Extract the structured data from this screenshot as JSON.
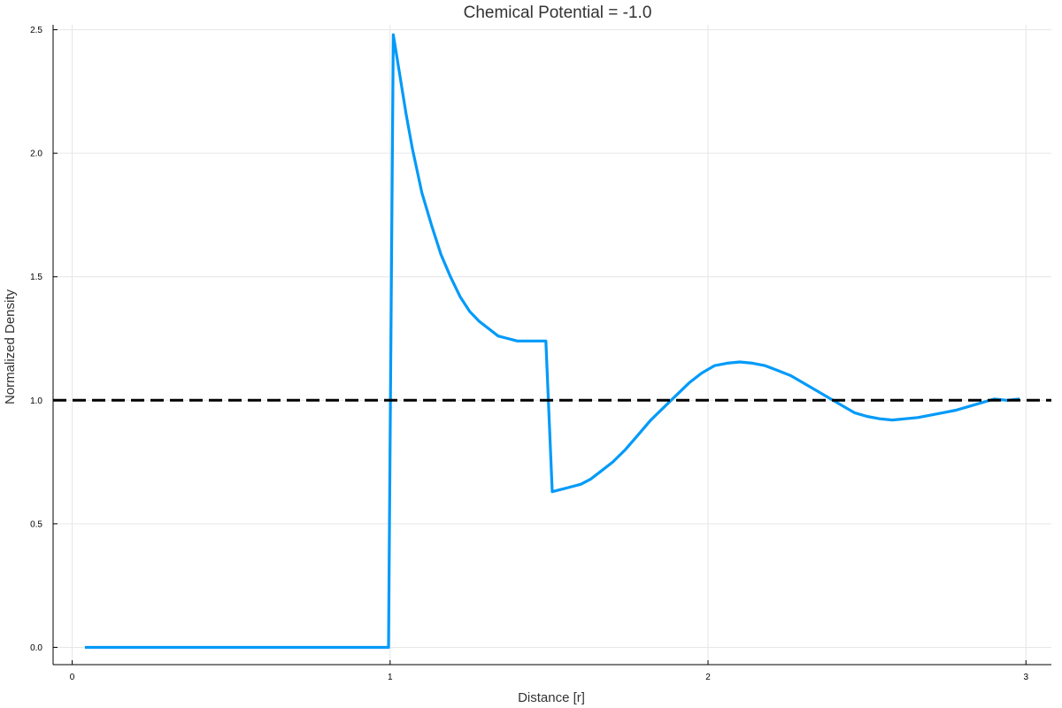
{
  "chart_data": {
    "type": "line",
    "title": "Chemical Potential = -1.0",
    "xlabel": "Distance [r]",
    "ylabel": "Normalized Density",
    "xlim": [
      -0.06,
      3.08
    ],
    "ylim": [
      -0.07,
      2.52
    ],
    "xticks": [
      0,
      1,
      2,
      3
    ],
    "xtick_labels": [
      "0",
      "1",
      "2",
      "3"
    ],
    "yticks": [
      0.0,
      0.5,
      1.0,
      1.5,
      2.0,
      2.5
    ],
    "ytick_labels": [
      "0.0",
      "0.5",
      "1.0",
      "1.5",
      "2.0",
      "2.5"
    ],
    "grid": true,
    "legend": "none",
    "colors": {
      "series": "#009af9",
      "reference": "#000000",
      "grid": "#e6e6e6"
    },
    "series": [
      {
        "style": "solid",
        "x": [
          0.04,
          0.1,
          0.2,
          0.3,
          0.4,
          0.5,
          0.6,
          0.7,
          0.8,
          0.9,
          0.995,
          1.01,
          1.03,
          1.05,
          1.07,
          1.1,
          1.13,
          1.16,
          1.19,
          1.22,
          1.25,
          1.28,
          1.31,
          1.34,
          1.37,
          1.4,
          1.43,
          1.46,
          1.48,
          1.49,
          1.51,
          1.54,
          1.57,
          1.6,
          1.63,
          1.66,
          1.7,
          1.74,
          1.78,
          1.82,
          1.86,
          1.9,
          1.94,
          1.98,
          2.02,
          2.06,
          2.1,
          2.14,
          2.18,
          2.22,
          2.26,
          2.3,
          2.34,
          2.38,
          2.42,
          2.46,
          2.5,
          2.54,
          2.58,
          2.62,
          2.66,
          2.7,
          2.74,
          2.78,
          2.82,
          2.86,
          2.9,
          2.94,
          2.98
        ],
        "y": [
          0.0,
          0.0,
          0.0,
          0.0,
          0.0,
          0.0,
          0.0,
          0.0,
          0.0,
          0.0,
          0.0,
          2.48,
          2.32,
          2.16,
          2.02,
          1.84,
          1.71,
          1.59,
          1.5,
          1.42,
          1.36,
          1.32,
          1.29,
          1.26,
          1.25,
          1.24,
          1.24,
          1.24,
          1.24,
          1.24,
          0.63,
          0.64,
          0.65,
          0.66,
          0.68,
          0.71,
          0.75,
          0.8,
          0.86,
          0.92,
          0.97,
          1.02,
          1.07,
          1.11,
          1.14,
          1.15,
          1.155,
          1.15,
          1.14,
          1.12,
          1.1,
          1.07,
          1.04,
          1.01,
          0.98,
          0.95,
          0.935,
          0.925,
          0.92,
          0.925,
          0.93,
          0.94,
          0.95,
          0.96,
          0.975,
          0.99,
          1.005,
          1.0,
          1.005
        ]
      },
      {
        "style": "dashed",
        "x": [
          -0.06,
          3.08
        ],
        "y": [
          1.0,
          1.0
        ]
      }
    ]
  }
}
